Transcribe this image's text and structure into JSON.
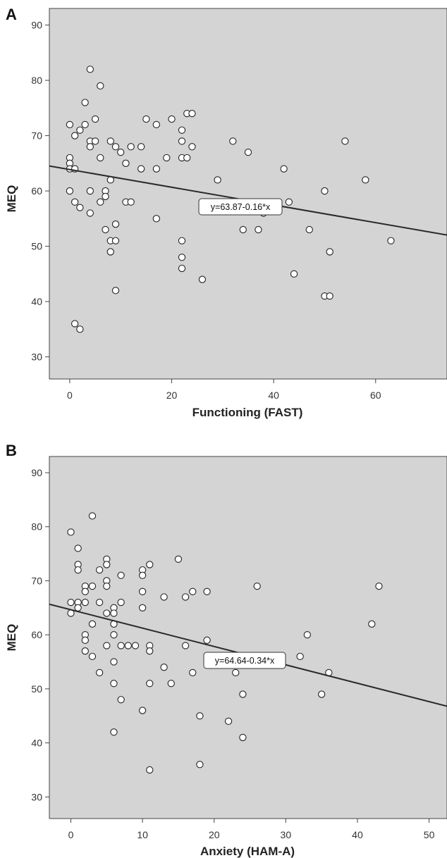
{
  "chart_data": [
    {
      "type": "scatter",
      "panel_label": "A",
      "xlabel": "Functioning (FAST)",
      "ylabel": "MEQ",
      "xlim": [
        -4,
        74
      ],
      "ylim": [
        26,
        93
      ],
      "xticks": [
        0,
        20,
        40,
        60
      ],
      "yticks": [
        30,
        40,
        50,
        60,
        70,
        80,
        90
      ],
      "background": "#d4d4d4",
      "regression": {
        "intercept": 63.87,
        "slope": -0.16,
        "label": "y=63.87-0.16*x"
      },
      "points": [
        {
          "x": 0,
          "y": 72
        },
        {
          "x": 0,
          "y": 66
        },
        {
          "x": 0,
          "y": 65
        },
        {
          "x": 0,
          "y": 64
        },
        {
          "x": 0,
          "y": 60
        },
        {
          "x": 1,
          "y": 70
        },
        {
          "x": 1,
          "y": 64
        },
        {
          "x": 1,
          "y": 58
        },
        {
          "x": 1,
          "y": 36
        },
        {
          "x": 2,
          "y": 71
        },
        {
          "x": 2,
          "y": 57
        },
        {
          "x": 2,
          "y": 35
        },
        {
          "x": 3,
          "y": 76
        },
        {
          "x": 3,
          "y": 72
        },
        {
          "x": 4,
          "y": 82
        },
        {
          "x": 4,
          "y": 69
        },
        {
          "x": 4,
          "y": 68
        },
        {
          "x": 4,
          "y": 60
        },
        {
          "x": 4,
          "y": 56
        },
        {
          "x": 5,
          "y": 73
        },
        {
          "x": 5,
          "y": 69
        },
        {
          "x": 6,
          "y": 79
        },
        {
          "x": 6,
          "y": 66
        },
        {
          "x": 6,
          "y": 58
        },
        {
          "x": 7,
          "y": 60
        },
        {
          "x": 7,
          "y": 59
        },
        {
          "x": 7,
          "y": 53
        },
        {
          "x": 8,
          "y": 69
        },
        {
          "x": 8,
          "y": 62
        },
        {
          "x": 8,
          "y": 51
        },
        {
          "x": 8,
          "y": 49
        },
        {
          "x": 9,
          "y": 68
        },
        {
          "x": 9,
          "y": 54
        },
        {
          "x": 9,
          "y": 51
        },
        {
          "x": 9,
          "y": 42
        },
        {
          "x": 10,
          "y": 67
        },
        {
          "x": 11,
          "y": 65
        },
        {
          "x": 11,
          "y": 58
        },
        {
          "x": 12,
          "y": 68
        },
        {
          "x": 12,
          "y": 58
        },
        {
          "x": 14,
          "y": 68
        },
        {
          "x": 14,
          "y": 64
        },
        {
          "x": 15,
          "y": 73
        },
        {
          "x": 17,
          "y": 72
        },
        {
          "x": 17,
          "y": 64
        },
        {
          "x": 17,
          "y": 55
        },
        {
          "x": 19,
          "y": 66
        },
        {
          "x": 20,
          "y": 73
        },
        {
          "x": 22,
          "y": 71
        },
        {
          "x": 22,
          "y": 69
        },
        {
          "x": 22,
          "y": 66
        },
        {
          "x": 22,
          "y": 51
        },
        {
          "x": 22,
          "y": 48
        },
        {
          "x": 22,
          "y": 46
        },
        {
          "x": 23,
          "y": 74
        },
        {
          "x": 23,
          "y": 66
        },
        {
          "x": 24,
          "y": 74
        },
        {
          "x": 24,
          "y": 68
        },
        {
          "x": 26,
          "y": 44
        },
        {
          "x": 29,
          "y": 62
        },
        {
          "x": 32,
          "y": 69
        },
        {
          "x": 34,
          "y": 53
        },
        {
          "x": 35,
          "y": 67
        },
        {
          "x": 37,
          "y": 53
        },
        {
          "x": 38,
          "y": 56
        },
        {
          "x": 42,
          "y": 64
        },
        {
          "x": 43,
          "y": 58
        },
        {
          "x": 44,
          "y": 45
        },
        {
          "x": 47,
          "y": 53
        },
        {
          "x": 50,
          "y": 60
        },
        {
          "x": 50,
          "y": 41
        },
        {
          "x": 51,
          "y": 49
        },
        {
          "x": 51,
          "y": 41
        },
        {
          "x": 54,
          "y": 69
        },
        {
          "x": 58,
          "y": 62
        },
        {
          "x": 63,
          "y": 51
        }
      ]
    },
    {
      "type": "scatter",
      "panel_label": "B",
      "xlabel": "Anxiety (HAM-A)",
      "ylabel": "MEQ",
      "xlim": [
        -3,
        52.5
      ],
      "ylim": [
        26,
        93
      ],
      "xticks": [
        0,
        10,
        20,
        30,
        40,
        50
      ],
      "yticks": [
        30,
        40,
        50,
        60,
        70,
        80,
        90
      ],
      "background": "#d4d4d4",
      "regression": {
        "intercept": 64.64,
        "slope": -0.34,
        "label": "y=64.64-0.34*x"
      },
      "points": [
        {
          "x": 0,
          "y": 79
        },
        {
          "x": 0,
          "y": 66
        },
        {
          "x": 0,
          "y": 64
        },
        {
          "x": 1,
          "y": 76
        },
        {
          "x": 1,
          "y": 73
        },
        {
          "x": 1,
          "y": 72
        },
        {
          "x": 1,
          "y": 66
        },
        {
          "x": 1,
          "y": 65
        },
        {
          "x": 2,
          "y": 69
        },
        {
          "x": 2,
          "y": 68
        },
        {
          "x": 2,
          "y": 66
        },
        {
          "x": 2,
          "y": 60
        },
        {
          "x": 2,
          "y": 59
        },
        {
          "x": 2,
          "y": 57
        },
        {
          "x": 3,
          "y": 82
        },
        {
          "x": 3,
          "y": 69
        },
        {
          "x": 3,
          "y": 62
        },
        {
          "x": 3,
          "y": 56
        },
        {
          "x": 4,
          "y": 72
        },
        {
          "x": 4,
          "y": 66
        },
        {
          "x": 4,
          "y": 53
        },
        {
          "x": 5,
          "y": 74
        },
        {
          "x": 5,
          "y": 73
        },
        {
          "x": 5,
          "y": 70
        },
        {
          "x": 5,
          "y": 69
        },
        {
          "x": 5,
          "y": 64
        },
        {
          "x": 5,
          "y": 58
        },
        {
          "x": 6,
          "y": 65
        },
        {
          "x": 6,
          "y": 64
        },
        {
          "x": 6,
          "y": 62
        },
        {
          "x": 6,
          "y": 60
        },
        {
          "x": 6,
          "y": 55
        },
        {
          "x": 6,
          "y": 51
        },
        {
          "x": 6,
          "y": 42
        },
        {
          "x": 7,
          "y": 71
        },
        {
          "x": 7,
          "y": 66
        },
        {
          "x": 7,
          "y": 58
        },
        {
          "x": 7,
          "y": 48
        },
        {
          "x": 8,
          "y": 58
        },
        {
          "x": 9,
          "y": 58
        },
        {
          "x": 10,
          "y": 72
        },
        {
          "x": 10,
          "y": 71
        },
        {
          "x": 10,
          "y": 68
        },
        {
          "x": 10,
          "y": 65
        },
        {
          "x": 10,
          "y": 46
        },
        {
          "x": 11,
          "y": 73
        },
        {
          "x": 11,
          "y": 58
        },
        {
          "x": 11,
          "y": 57
        },
        {
          "x": 11,
          "y": 51
        },
        {
          "x": 11,
          "y": 35
        },
        {
          "x": 13,
          "y": 67
        },
        {
          "x": 13,
          "y": 54
        },
        {
          "x": 14,
          "y": 51
        },
        {
          "x": 15,
          "y": 74
        },
        {
          "x": 16,
          "y": 67
        },
        {
          "x": 16,
          "y": 58
        },
        {
          "x": 17,
          "y": 68
        },
        {
          "x": 17,
          "y": 53
        },
        {
          "x": 18,
          "y": 45
        },
        {
          "x": 18,
          "y": 36
        },
        {
          "x": 19,
          "y": 68
        },
        {
          "x": 19,
          "y": 59
        },
        {
          "x": 22,
          "y": 44
        },
        {
          "x": 23,
          "y": 53
        },
        {
          "x": 24,
          "y": 49
        },
        {
          "x": 24,
          "y": 41
        },
        {
          "x": 26,
          "y": 69
        },
        {
          "x": 32,
          "y": 56
        },
        {
          "x": 33,
          "y": 60
        },
        {
          "x": 35,
          "y": 49
        },
        {
          "x": 36,
          "y": 53
        },
        {
          "x": 42,
          "y": 62
        },
        {
          "x": 43,
          "y": 69
        }
      ]
    }
  ]
}
